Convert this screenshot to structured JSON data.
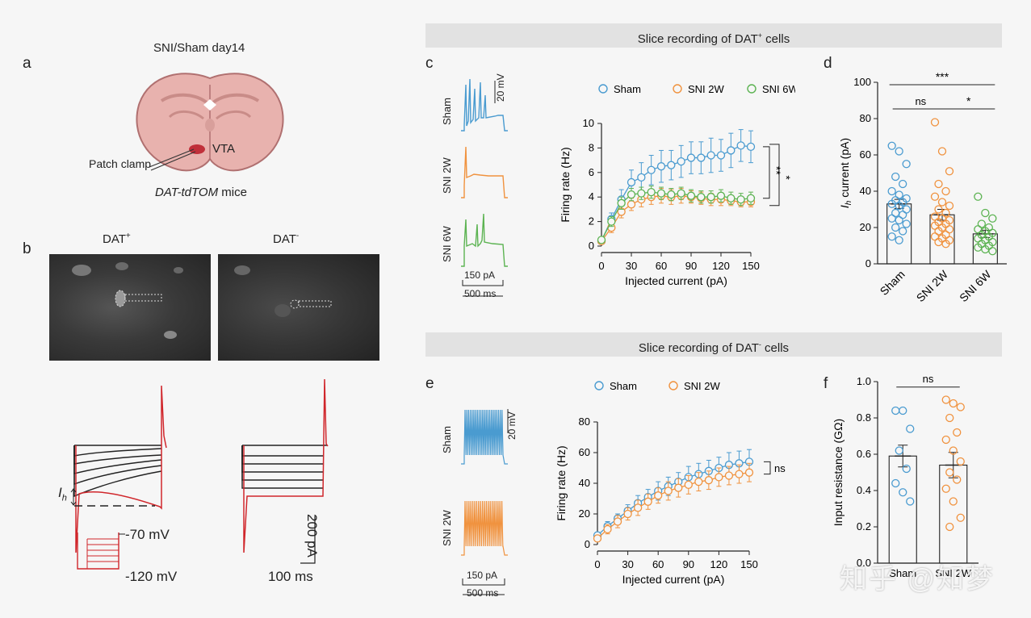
{
  "colors": {
    "sham": "#4a9bd0",
    "sni2w": "#f0923e",
    "sni6w": "#5cb352",
    "red_trace": "#d0262b",
    "banner_bg": "#e2e2e2"
  },
  "panel_a": {
    "letter": "a",
    "title": "SNI/Sham day14",
    "region": "VTA",
    "patch_label": "Patch clamp",
    "mice_label_italic": "DAT-tdTOM",
    "mice_label_rest": " mice"
  },
  "panel_b": {
    "letter": "b",
    "left_title": "DAT",
    "left_sup": "+",
    "right_title": "DAT",
    "right_sup": "-",
    "ih_label": "I",
    "ih_sub": "h",
    "v_top": "-70 mV",
    "v_bottom": "-120 mV",
    "scale_y": "200 pA",
    "scale_x": "100 ms"
  },
  "banner_top": {
    "text_pre": "Slice recording of DAT",
    "sup": "+",
    "text_post": " cells"
  },
  "banner_bottom": {
    "text_pre": "Slice recording of DAT",
    "sup": "-",
    "text_post": " cells"
  },
  "panel_c": {
    "letter": "c",
    "trace_labels": [
      "Sham",
      "SNI 2W",
      "SNI 6W"
    ],
    "scale_v": "20 mV",
    "stim_current": "150 pA",
    "stim_time": "500 ms",
    "sig1": "**",
    "sig2": "*"
  },
  "panel_d": {
    "letter": "d",
    "sig_top": "***",
    "sig_left": "ns",
    "sig_right": "*"
  },
  "panel_e": {
    "letter": "e",
    "trace_labels": [
      "Sham",
      "SNI 2W"
    ],
    "scale_v": "20 mV",
    "stim_current": "150 pA",
    "stim_time": "500 ms",
    "sig": "ns"
  },
  "panel_f": {
    "letter": "f",
    "sig": "ns"
  },
  "watermark": "知乎 @知梦",
  "chart_data": [
    {
      "id": "c",
      "type": "line",
      "xlabel": "Injected current (pA)",
      "ylabel": "Firing rate (Hz)",
      "xlim": [
        0,
        150
      ],
      "ylim": [
        0,
        10
      ],
      "xticks": [
        0,
        30,
        60,
        90,
        120,
        150
      ],
      "yticks": [
        0,
        2,
        4,
        6,
        8,
        10
      ],
      "legend": [
        "Sham",
        "SNI 2W",
        "SNI 6W"
      ],
      "x": [
        0,
        10,
        20,
        30,
        40,
        50,
        60,
        70,
        80,
        90,
        100,
        110,
        120,
        130,
        140,
        150
      ],
      "series": [
        {
          "name": "Sham",
          "values": [
            0.4,
            2.2,
            3.8,
            5.2,
            5.6,
            6.2,
            6.5,
            6.6,
            6.9,
            7.2,
            7.2,
            7.4,
            7.4,
            7.8,
            8.2,
            8.1
          ],
          "err": [
            0.2,
            0.5,
            0.8,
            1.0,
            1.2,
            1.2,
            1.3,
            1.2,
            1.3,
            1.3,
            1.3,
            1.4,
            1.3,
            1.4,
            1.3,
            1.3
          ]
        },
        {
          "name": "SNI 2W",
          "values": [
            0.4,
            1.5,
            2.8,
            3.4,
            3.8,
            4.0,
            4.1,
            4.0,
            4.1,
            4.0,
            3.9,
            3.8,
            3.8,
            3.7,
            3.6,
            3.6
          ],
          "err": [
            0.2,
            0.4,
            0.5,
            0.5,
            0.6,
            0.6,
            0.6,
            0.6,
            0.6,
            0.5,
            0.5,
            0.5,
            0.5,
            0.4,
            0.4,
            0.4
          ]
        },
        {
          "name": "SNI 6W",
          "values": [
            0.5,
            2.0,
            3.5,
            4.2,
            4.3,
            4.4,
            4.3,
            4.2,
            4.3,
            4.1,
            4.0,
            4.0,
            4.1,
            3.9,
            3.8,
            3.9
          ],
          "err": [
            0.2,
            0.4,
            0.5,
            0.5,
            0.5,
            0.5,
            0.5,
            0.5,
            0.5,
            0.5,
            0.5,
            0.5,
            0.5,
            0.5,
            0.5,
            0.5
          ]
        }
      ]
    },
    {
      "id": "d",
      "type": "bar",
      "ylabel_pre": "I",
      "ylabel_sub": "h",
      "ylabel_post": " current (pA)",
      "ylim": [
        0,
        100
      ],
      "yticks": [
        0,
        20,
        40,
        60,
        80,
        100
      ],
      "categories": [
        "Sham",
        "SNI 2W",
        "SNI 6W"
      ],
      "values": [
        33,
        27,
        16.5
      ],
      "sem": [
        2.5,
        3.0,
        2.0
      ],
      "points": [
        [
          65,
          62,
          55,
          48,
          44,
          40,
          38,
          36,
          35,
          34,
          33,
          32,
          30,
          28,
          27,
          25,
          24,
          22,
          20,
          18,
          15,
          13
        ],
        [
          78,
          62,
          51,
          44,
          40,
          37,
          34,
          32,
          30,
          28,
          26,
          25,
          24,
          23,
          22,
          21,
          20,
          19,
          18,
          16,
          15,
          14,
          13,
          12,
          11
        ],
        [
          37,
          28,
          25,
          22,
          20,
          19,
          18,
          17,
          16,
          15,
          14,
          13,
          12,
          11,
          10,
          9,
          8,
          7
        ]
      ]
    },
    {
      "id": "e",
      "type": "line",
      "xlabel": "Injected current (pA)",
      "ylabel": "Firing rate (Hz)",
      "xlim": [
        0,
        150
      ],
      "ylim": [
        0,
        80
      ],
      "xticks": [
        0,
        30,
        60,
        90,
        120,
        150
      ],
      "yticks": [
        0,
        20,
        40,
        60,
        80
      ],
      "legend": [
        "Sham",
        "SNI 2W"
      ],
      "x": [
        0,
        10,
        20,
        30,
        40,
        50,
        60,
        70,
        80,
        90,
        100,
        110,
        120,
        130,
        140,
        150
      ],
      "series": [
        {
          "name": "Sham",
          "values": [
            6,
            12,
            17,
            22,
            27,
            31,
            35,
            38,
            41,
            44,
            46,
            48,
            50,
            52,
            53,
            54
          ],
          "err": [
            2,
            3,
            3,
            4,
            5,
            5,
            6,
            6,
            6,
            7,
            7,
            7,
            7,
            8,
            8,
            8
          ]
        },
        {
          "name": "SNI 2W",
          "values": [
            4,
            10,
            15,
            20,
            24,
            28,
            32,
            35,
            37,
            39,
            41,
            42,
            44,
            45,
            46,
            47
          ],
          "err": [
            2,
            3,
            4,
            4,
            5,
            5,
            5,
            6,
            6,
            6,
            6,
            6,
            6,
            6,
            6,
            6
          ]
        }
      ]
    },
    {
      "id": "f",
      "type": "bar",
      "ylabel": "Input resistance (GΩ)",
      "ylim": [
        0,
        1.0
      ],
      "yticks": [
        0.0,
        0.2,
        0.4,
        0.6,
        0.8,
        1.0
      ],
      "categories": [
        "Sham",
        "SNI 2W"
      ],
      "values": [
        0.59,
        0.54
      ],
      "sem": [
        0.06,
        0.07
      ],
      "points": [
        [
          0.84,
          0.84,
          0.74,
          0.62,
          0.52,
          0.44,
          0.39,
          0.34
        ],
        [
          0.9,
          0.88,
          0.86,
          0.8,
          0.72,
          0.68,
          0.62,
          0.56,
          0.5,
          0.46,
          0.41,
          0.34,
          0.25,
          0.2
        ]
      ]
    }
  ]
}
